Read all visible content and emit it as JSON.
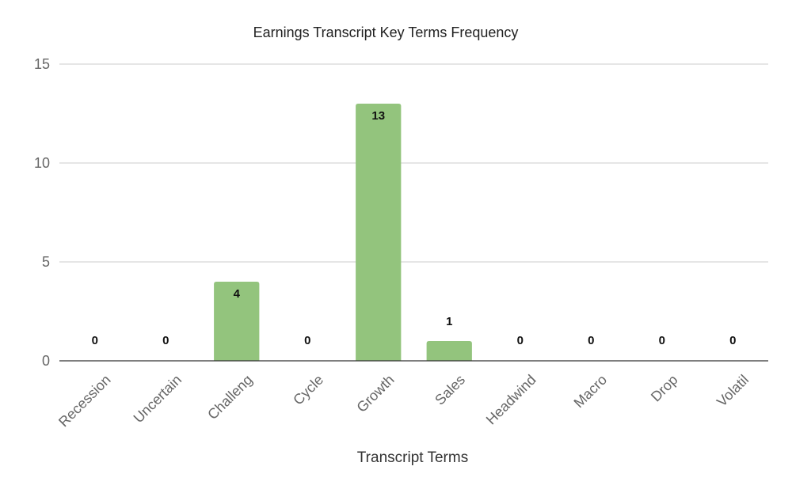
{
  "chart_data": {
    "type": "bar",
    "title": "Earnings Transcript Key Terms Frequency",
    "xlabel": "Transcript Terms",
    "ylabel": "",
    "categories": [
      "Recession",
      "Uncertain",
      "Challeng",
      "Cycle",
      "Growth",
      "Sales",
      "Headwind",
      "Macro",
      "Drop",
      "Volatil"
    ],
    "values": [
      0,
      0,
      4,
      0,
      13,
      1,
      0,
      0,
      0,
      0
    ],
    "ylim": [
      0,
      15
    ],
    "yticks": [
      0,
      5,
      10,
      15
    ],
    "grid": true,
    "data_labels": true,
    "legend": "none",
    "bar_color": "#93c47d",
    "tick_label_rotation": "45"
  }
}
